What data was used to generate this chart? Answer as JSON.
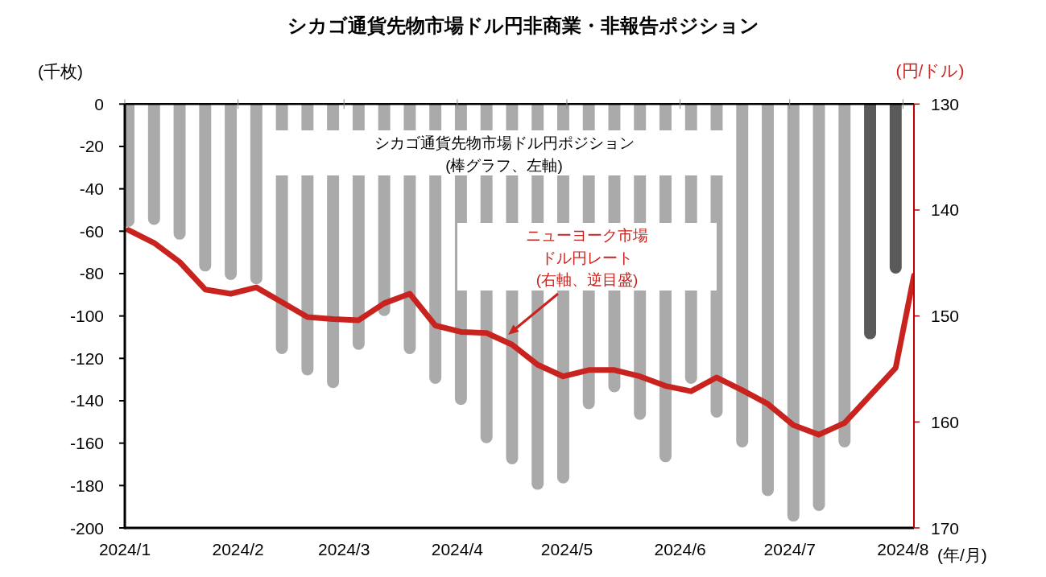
{
  "chart_data": {
    "type": "bar",
    "title": "シカゴ通貨先物市場ドル円非商業・非報告ポジション",
    "ylabel": "(千枚)",
    "y2label": "(円/ドル)",
    "xlabel": "(年/月)",
    "x": [
      "2024-01-02",
      "2024-01-09",
      "2024-01-16",
      "2024-01-23",
      "2024-01-30",
      "2024-02-06",
      "2024-02-13",
      "2024-02-20",
      "2024-02-27",
      "2024-03-05",
      "2024-03-12",
      "2024-03-19",
      "2024-03-26",
      "2024-04-02",
      "2024-04-09",
      "2024-04-16",
      "2024-04-23",
      "2024-04-30",
      "2024-05-07",
      "2024-05-14",
      "2024-05-21",
      "2024-05-28",
      "2024-06-04",
      "2024-06-11",
      "2024-06-18",
      "2024-06-25",
      "2024-07-02",
      "2024-07-09",
      "2024-07-16",
      "2024-07-23",
      "2024-07-30"
    ],
    "series": [
      {
        "name": "シカゴ通貨先物市場ドル円ポジション(棒グラフ、左軸)",
        "colors": [
          "#aaaaaa",
          "#aaaaaa",
          "#aaaaaa",
          "#aaaaaa",
          "#aaaaaa",
          "#aaaaaa",
          "#aaaaaa",
          "#aaaaaa",
          "#aaaaaa",
          "#aaaaaa",
          "#aaaaaa",
          "#aaaaaa",
          "#aaaaaa",
          "#aaaaaa",
          "#aaaaaa",
          "#aaaaaa",
          "#aaaaaa",
          "#aaaaaa",
          "#aaaaaa",
          "#aaaaaa",
          "#aaaaaa",
          "#aaaaaa",
          "#aaaaaa",
          "#aaaaaa",
          "#aaaaaa",
          "#aaaaaa",
          "#aaaaaa",
          "#aaaaaa",
          "#aaaaaa",
          "#5a5a5a",
          "#5a5a5a"
        ],
        "values": [
          -58,
          -57,
          -64,
          -79,
          -83,
          -85,
          -118,
          -128,
          -134,
          -116,
          -100,
          -118,
          -132,
          -142,
          -160,
          -170,
          -182,
          -179,
          -144,
          -136,
          -149,
          -169,
          -132,
          -148,
          -162,
          -185,
          -197,
          -192,
          -162,
          -111,
          -80
        ]
      },
      {
        "name": "ニューヨーク市場ドル円レート(右軸、逆目盛)",
        "type": "line",
        "axis": "y2",
        "color": "#c8231f",
        "x": [
          "2024-01-02",
          "2024-01-09",
          "2024-01-16",
          "2024-01-23",
          "2024-01-30",
          "2024-02-06",
          "2024-02-13",
          "2024-02-20",
          "2024-02-27",
          "2024-03-05",
          "2024-03-12",
          "2024-03-19",
          "2024-03-26",
          "2024-04-02",
          "2024-04-09",
          "2024-04-16",
          "2024-04-23",
          "2024-04-30",
          "2024-05-07",
          "2024-05-14",
          "2024-05-21",
          "2024-05-28",
          "2024-06-04",
          "2024-06-11",
          "2024-06-18",
          "2024-06-25",
          "2024-07-02",
          "2024-07-09",
          "2024-07-16",
          "2024-07-23",
          "2024-07-30",
          "2024-08-04"
        ],
        "values": [
          141.9,
          143.1,
          144.9,
          147.5,
          147.9,
          147.3,
          148.7,
          150.1,
          150.3,
          150.4,
          148.8,
          147.9,
          150.9,
          151.5,
          151.6,
          152.7,
          154.6,
          155.7,
          155.1,
          155.1,
          155.7,
          156.6,
          157.1,
          155.8,
          157.0,
          158.3,
          160.3,
          161.2,
          160.1,
          157.5,
          154.9,
          146.2
        ]
      }
    ],
    "xlim": [
      "2024-01-01",
      "2024-08-04"
    ],
    "xticks": [
      {
        "value": "2024-01-01",
        "label": "2024/1"
      },
      {
        "value": "2024-02-01",
        "label": "2024/2"
      },
      {
        "value": "2024-03-01",
        "label": "2024/3"
      },
      {
        "value": "2024-04-01",
        "label": "2024/4"
      },
      {
        "value": "2024-05-01",
        "label": "2024/5"
      },
      {
        "value": "2024-06-01",
        "label": "2024/6"
      },
      {
        "value": "2024-07-01",
        "label": "2024/7"
      },
      {
        "value": "2024-08-01",
        "label": "2024/8"
      }
    ],
    "ylim": [
      -200,
      0
    ],
    "yticks": [
      0,
      -20,
      -40,
      -60,
      -80,
      -100,
      -120,
      -140,
      -160,
      -180,
      -200
    ],
    "y2lim": [
      170,
      130
    ],
    "y2ticks": [
      130,
      140,
      150,
      160,
      170
    ]
  }
}
